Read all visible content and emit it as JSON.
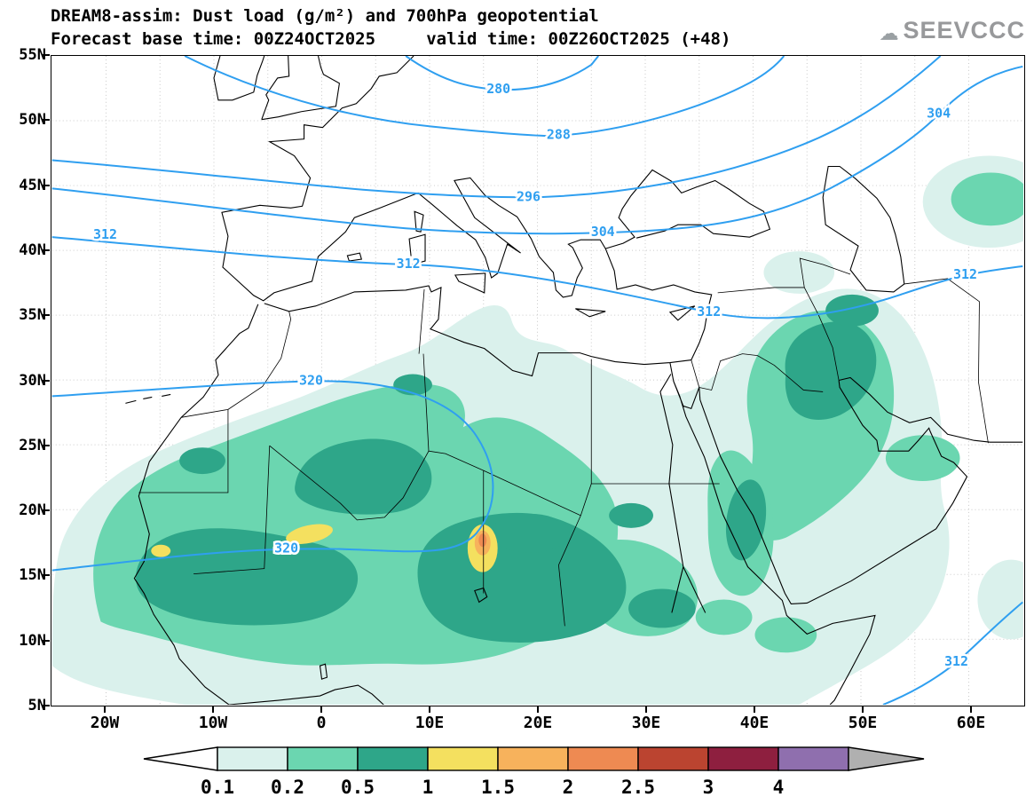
{
  "header": {
    "title_line1": "DREAM8-assim: Dust load (g/m²) and 700hPa geopotential",
    "title_line2": "Forecast base time: 00Z24OCT2025     valid time: 00Z26OCT2025 (+48)",
    "logo_text": "SEEVCCC"
  },
  "map": {
    "frame_color": "#000000",
    "grid_color": "#c9c9c9",
    "land_outline_color": "#000000"
  },
  "chart_data": {
    "type": "heatmap",
    "subtype": "filled contour map (dust load) with line contours (geopotential)",
    "title": "DREAM8-assim: Dust load (g/m²) and 700hPa geopotential",
    "forecast_base_time": "00Z24OCT2025",
    "valid_time": "00Z26OCT2025",
    "lead": "+48",
    "field_shaded": "Dust load (g/m²)",
    "field_contours": "700hPa geopotential",
    "x_axis": {
      "ticks": [
        "20W",
        "10W",
        "0",
        "10E",
        "20E",
        "30E",
        "40E",
        "50E",
        "60E"
      ],
      "domain": [
        "25W",
        "65E"
      ],
      "grid": "dotted, 5 degree spacing"
    },
    "y_axis": {
      "ticks": [
        "55N",
        "50N",
        "45N",
        "40N",
        "35N",
        "30N",
        "25N",
        "20N",
        "15N",
        "10N",
        "5N"
      ],
      "domain": [
        "5N",
        "55N"
      ],
      "grid": "dotted, 5 degree spacing"
    },
    "colorbar": {
      "units": "g/m²",
      "levels": [
        "0.1",
        "0.2",
        "0.5",
        "1",
        "1.5",
        "2",
        "2.5",
        "3",
        "4"
      ],
      "segment_colors": [
        "#ffffff",
        "#daf1ec",
        "#6bd6b0",
        "#2ea689",
        "#f4e05f",
        "#f7b25c",
        "#ee8a52",
        "#bb4430",
        "#8e1f3f",
        "#8f6fae",
        "#b0b0b0"
      ]
    },
    "geopotential": {
      "color": "#2f9ff0",
      "contour_values": [
        "280",
        "288",
        "296",
        "304",
        "312",
        "320"
      ],
      "labels": [
        {
          "value": "280"
        },
        {
          "value": "288"
        },
        {
          "value": "296"
        },
        {
          "value": "304"
        },
        {
          "value": "304"
        },
        {
          "value": "312"
        },
        {
          "value": "312"
        },
        {
          "value": "312"
        },
        {
          "value": "312"
        },
        {
          "value": "312"
        },
        {
          "value": "320"
        },
        {
          "value": "320"
        }
      ]
    },
    "dust_maxima": [
      {
        "location": "Chad / Bodélé, ~15E 18N",
        "value_gm2": ">2"
      },
      {
        "location": "Mali, ~2W 18N",
        "value_gm2": ">1"
      },
      {
        "location": "Mauritania coast, ~15W 17N",
        "value_gm2": ">1"
      },
      {
        "location": "Sahel band 10N-20N, West Africa to Sudan",
        "value_gm2": "0.5-1"
      },
      {
        "location": "Iraq / NW Saudi Arabia",
        "value_gm2": "0.5-1"
      }
    ]
  }
}
